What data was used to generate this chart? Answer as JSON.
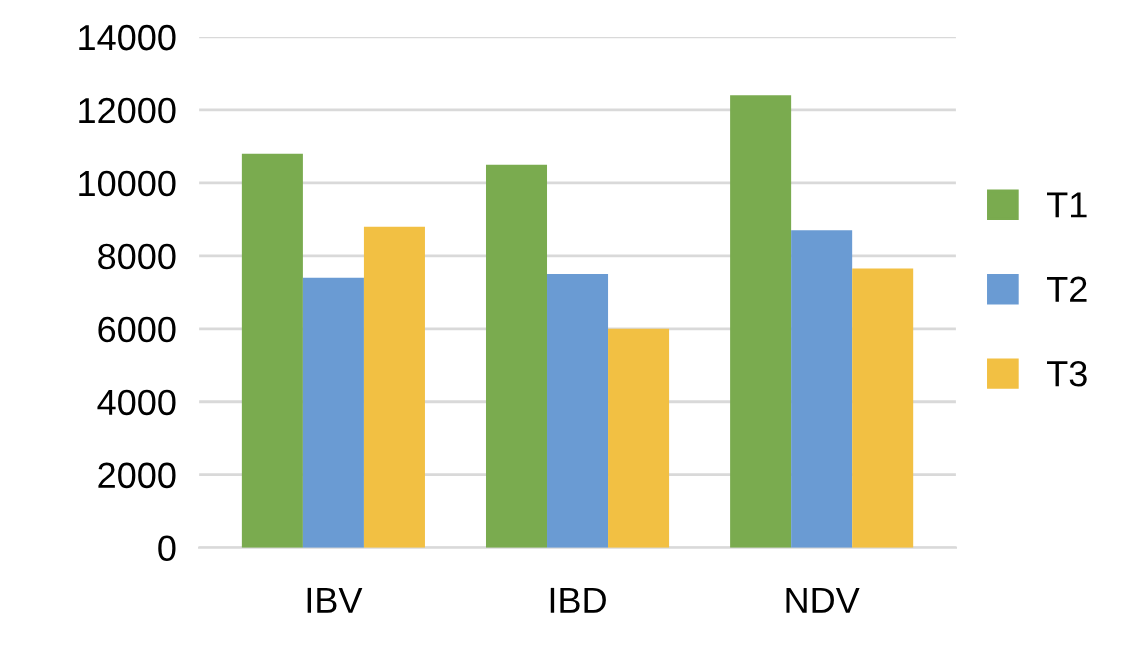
{
  "chart_data": {
    "type": "bar",
    "categories": [
      "IBV",
      "IBD",
      "NDV"
    ],
    "series": [
      {
        "name": "T1",
        "color": "#7aab4f",
        "values": [
          10800,
          10500,
          12400
        ]
      },
      {
        "name": "T2",
        "color": "#6a9bd3",
        "values": [
          7400,
          7500,
          8700
        ]
      },
      {
        "name": "T3",
        "color": "#f2c043",
        "values": [
          8800,
          6000,
          7650
        ]
      }
    ],
    "ylim": [
      0,
      14000
    ],
    "yticks": [
      0,
      2000,
      4000,
      6000,
      8000,
      10000,
      12000,
      14000
    ],
    "grid": "y",
    "legend": "right"
  }
}
